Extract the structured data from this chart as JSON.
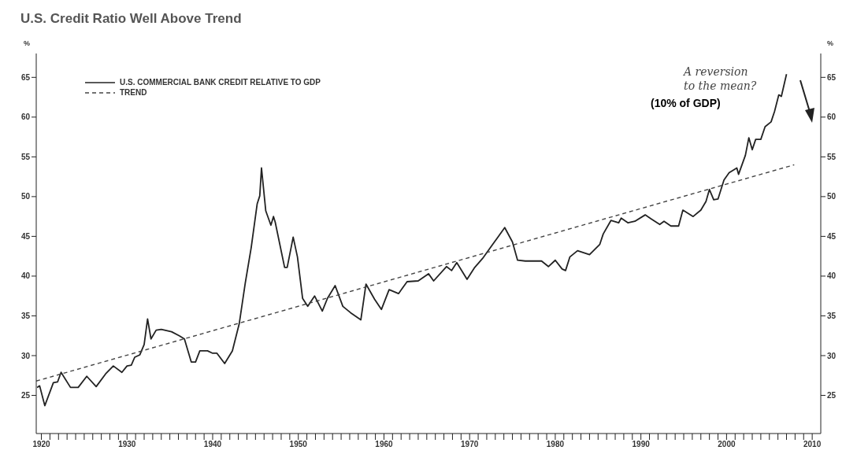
{
  "chart_data": {
    "type": "line",
    "title": "U.S. Credit Ratio Well Above Trend",
    "ylabel": "%",
    "y2label": "%",
    "annotations": [
      "A reversion\nto the mean?",
      "(10% of GDP)"
    ],
    "xlim": [
      1919.4,
      2011
    ],
    "xticks": [
      1920,
      {
        "value": 1921,
        "label": null
      },
      {
        "value": 1922,
        "label": null
      },
      {
        "value": 1923,
        "label": null
      },
      {
        "value": 1924,
        "label": null
      },
      {
        "value": 1925,
        "label": null
      },
      {
        "value": 1926,
        "label": null
      },
      {
        "value": 1927,
        "label": null
      },
      {
        "value": 1928,
        "label": null
      },
      {
        "value": 1929,
        "label": null
      },
      1930,
      {
        "value": 1931,
        "label": null
      },
      {
        "value": 1932,
        "label": null
      },
      {
        "value": 1933,
        "label": null
      },
      {
        "value": 1934,
        "label": null
      },
      {
        "value": 1935,
        "label": null
      },
      {
        "value": 1936,
        "label": null
      },
      {
        "value": 1937,
        "label": null
      },
      {
        "value": 1938,
        "label": null
      },
      {
        "value": 1939,
        "label": null
      },
      1940,
      {
        "value": 1941,
        "label": null
      },
      {
        "value": 1942,
        "label": null
      },
      {
        "value": 1943,
        "label": null
      },
      {
        "value": 1944,
        "label": null
      },
      {
        "value": 1945,
        "label": null
      },
      {
        "value": 1946,
        "label": null
      },
      {
        "value": 1947,
        "label": null
      },
      {
        "value": 1948,
        "label": null
      },
      {
        "value": 1949,
        "label": null
      },
      1950,
      {
        "value": 1951,
        "label": null
      },
      {
        "value": 1952,
        "label": null
      },
      {
        "value": 1953,
        "label": null
      },
      {
        "value": 1954,
        "label": null
      },
      {
        "value": 1955,
        "label": null
      },
      {
        "value": 1956,
        "label": null
      },
      {
        "value": 1957,
        "label": null
      },
      {
        "value": 1958,
        "label": null
      },
      {
        "value": 1959,
        "label": null
      },
      1960,
      {
        "value": 1961,
        "label": null
      },
      {
        "value": 1962,
        "label": null
      },
      {
        "value": 1963,
        "label": null
      },
      {
        "value": 1964,
        "label": null
      },
      {
        "value": 1965,
        "label": null
      },
      {
        "value": 1966,
        "label": null
      },
      {
        "value": 1967,
        "label": null
      },
      {
        "value": 1968,
        "label": null
      },
      {
        "value": 1969,
        "label": null
      },
      1970,
      {
        "value": 1971,
        "label": null
      },
      {
        "value": 1972,
        "label": null
      },
      {
        "value": 1973,
        "label": null
      },
      {
        "value": 1974,
        "label": null
      },
      {
        "value": 1975,
        "label": null
      },
      {
        "value": 1976,
        "label": null
      },
      {
        "value": 1977,
        "label": null
      },
      {
        "value": 1978,
        "label": null
      },
      {
        "value": 1979,
        "label": null
      },
      1980,
      {
        "value": 1981,
        "label": null
      },
      {
        "value": 1982,
        "label": null
      },
      {
        "value": 1983,
        "label": null
      },
      {
        "value": 1984,
        "label": null
      },
      {
        "value": 1985,
        "label": null
      },
      {
        "value": 1986,
        "label": null
      },
      {
        "value": 1987,
        "label": null
      },
      {
        "value": 1988,
        "label": null
      },
      {
        "value": 1989,
        "label": null
      },
      1990,
      {
        "value": 1991,
        "label": null
      },
      {
        "value": 1992,
        "label": null
      },
      {
        "value": 1993,
        "label": null
      },
      {
        "value": 1994,
        "label": null
      },
      {
        "value": 1995,
        "label": null
      },
      {
        "value": 1996,
        "label": null
      },
      {
        "value": 1997,
        "label": null
      },
      {
        "value": 1998,
        "label": null
      },
      {
        "value": 1999,
        "label": null
      },
      2000,
      {
        "value": 2001,
        "label": null
      },
      {
        "value": 2002,
        "label": null
      },
      {
        "value": 2003,
        "label": null
      },
      {
        "value": 2004,
        "label": null
      },
      {
        "value": 2005,
        "label": null
      },
      {
        "value": 2006,
        "label": null
      },
      {
        "value": 2007,
        "label": null
      },
      {
        "value": 2008,
        "label": null
      },
      {
        "value": 2009,
        "label": null
      },
      2010
    ],
    "ylim": [
      20.2,
      68
    ],
    "yticks": [
      25,
      30,
      35,
      40,
      45,
      50,
      55,
      60,
      65
    ],
    "y2lim": [
      20.2,
      68
    ],
    "y2ticks": [
      25,
      30,
      35,
      40,
      45,
      50,
      55,
      60,
      65
    ],
    "legend": "top left",
    "marker": "none",
    "series": [
      {
        "name": "U.S. COMMERCIAL BANK CREDIT RELATIVE TO GDP",
        "color": "#222222",
        "line_style": "solid",
        "x": [
          1919.5,
          1919.8,
          1920.4,
          1921.4,
          1921.9,
          1922.3,
          1923.4,
          1924.3,
          1925.3,
          1926.4,
          1927.5,
          1928.4,
          1929.4,
          1930.0,
          1930.5,
          1930.9,
          1931.5,
          1932.0,
          1932.4,
          1932.8,
          1933.4,
          1934.0,
          1935.2,
          1936.1,
          1936.7,
          1937.5,
          1938.0,
          1938.5,
          1939.4,
          1940.0,
          1940.5,
          1941.4,
          1942.3,
          1943.1,
          1943.8,
          1944.5,
          1945.2,
          1945.5,
          1945.7,
          1946.2,
          1946.8,
          1947.1,
          1947.3,
          1948.4,
          1948.7,
          1949.4,
          1949.9,
          1950.5,
          1951.1,
          1951.9,
          1952.8,
          1953.4,
          1954.3,
          1955.2,
          1956.1,
          1957.3,
          1957.9,
          1958.9,
          1959.7,
          1960.6,
          1961.7,
          1962.7,
          1964.0,
          1965.2,
          1965.8,
          1967.3,
          1967.9,
          1968.5,
          1969.7,
          1970.6,
          1971.5,
          1972.7,
          1973.3,
          1974.1,
          1975.0,
          1975.6,
          1976.5,
          1978.4,
          1979.2,
          1980.0,
          1980.8,
          1981.2,
          1981.7,
          1982.6,
          1984.0,
          1985.2,
          1985.6,
          1986.5,
          1987.4,
          1987.7,
          1988.5,
          1989.3,
          1990.5,
          1991.2,
          1992.2,
          1992.7,
          1993.5,
          1994.4,
          1994.9,
          1996.1,
          1997.0,
          1997.6,
          1998.0,
          1998.5,
          1999.0,
          1999.7,
          2000.3,
          2001.2,
          2001.4,
          2002.2,
          2002.6,
          2003.0,
          2003.4,
          2004.0,
          2004.5,
          2005.2,
          2005.6,
          2006.1,
          2006.4,
          2007.0
        ],
        "values": [
          26.0,
          26.2,
          23.7,
          26.6,
          26.7,
          27.9,
          26.0,
          26.0,
          27.4,
          26.1,
          27.7,
          28.7,
          27.9,
          28.7,
          28.8,
          29.8,
          30.1,
          31.4,
          34.6,
          32.1,
          33.2,
          33.3,
          33.0,
          32.5,
          32.1,
          29.2,
          29.2,
          30.6,
          30.6,
          30.3,
          30.3,
          29.0,
          30.6,
          34.0,
          39.1,
          43.6,
          49.1,
          50.1,
          53.6,
          48.2,
          46.4,
          47.5,
          46.8,
          41.1,
          41.1,
          44.9,
          42.4,
          37.2,
          36.2,
          37.5,
          35.6,
          37.2,
          38.8,
          36.2,
          35.4,
          34.5,
          39.0,
          37.1,
          35.8,
          38.3,
          37.8,
          39.3,
          39.4,
          40.3,
          39.4,
          41.2,
          40.7,
          41.7,
          39.6,
          41.1,
          42.2,
          44.0,
          44.9,
          46.1,
          44.3,
          42.0,
          41.9,
          41.9,
          41.2,
          42.0,
          40.9,
          40.7,
          42.4,
          43.2,
          42.7,
          44.0,
          45.3,
          47.0,
          46.7,
          47.3,
          46.7,
          46.9,
          47.7,
          47.2,
          46.5,
          46.9,
          46.3,
          46.3,
          48.3,
          47.5,
          48.3,
          49.4,
          50.9,
          49.6,
          49.7,
          52.1,
          53.0,
          53.6,
          52.8,
          55.2,
          57.4,
          55.9,
          57.2,
          57.2,
          58.8,
          59.4,
          60.7,
          62.8,
          62.6,
          65.4
        ]
      },
      {
        "name": "TREND",
        "color": "#444444",
        "type": "line",
        "line_style": "dashed",
        "x": [
          1919.4,
          2007.9
        ],
        "values": [
          26.8,
          54.0
        ]
      }
    ]
  }
}
